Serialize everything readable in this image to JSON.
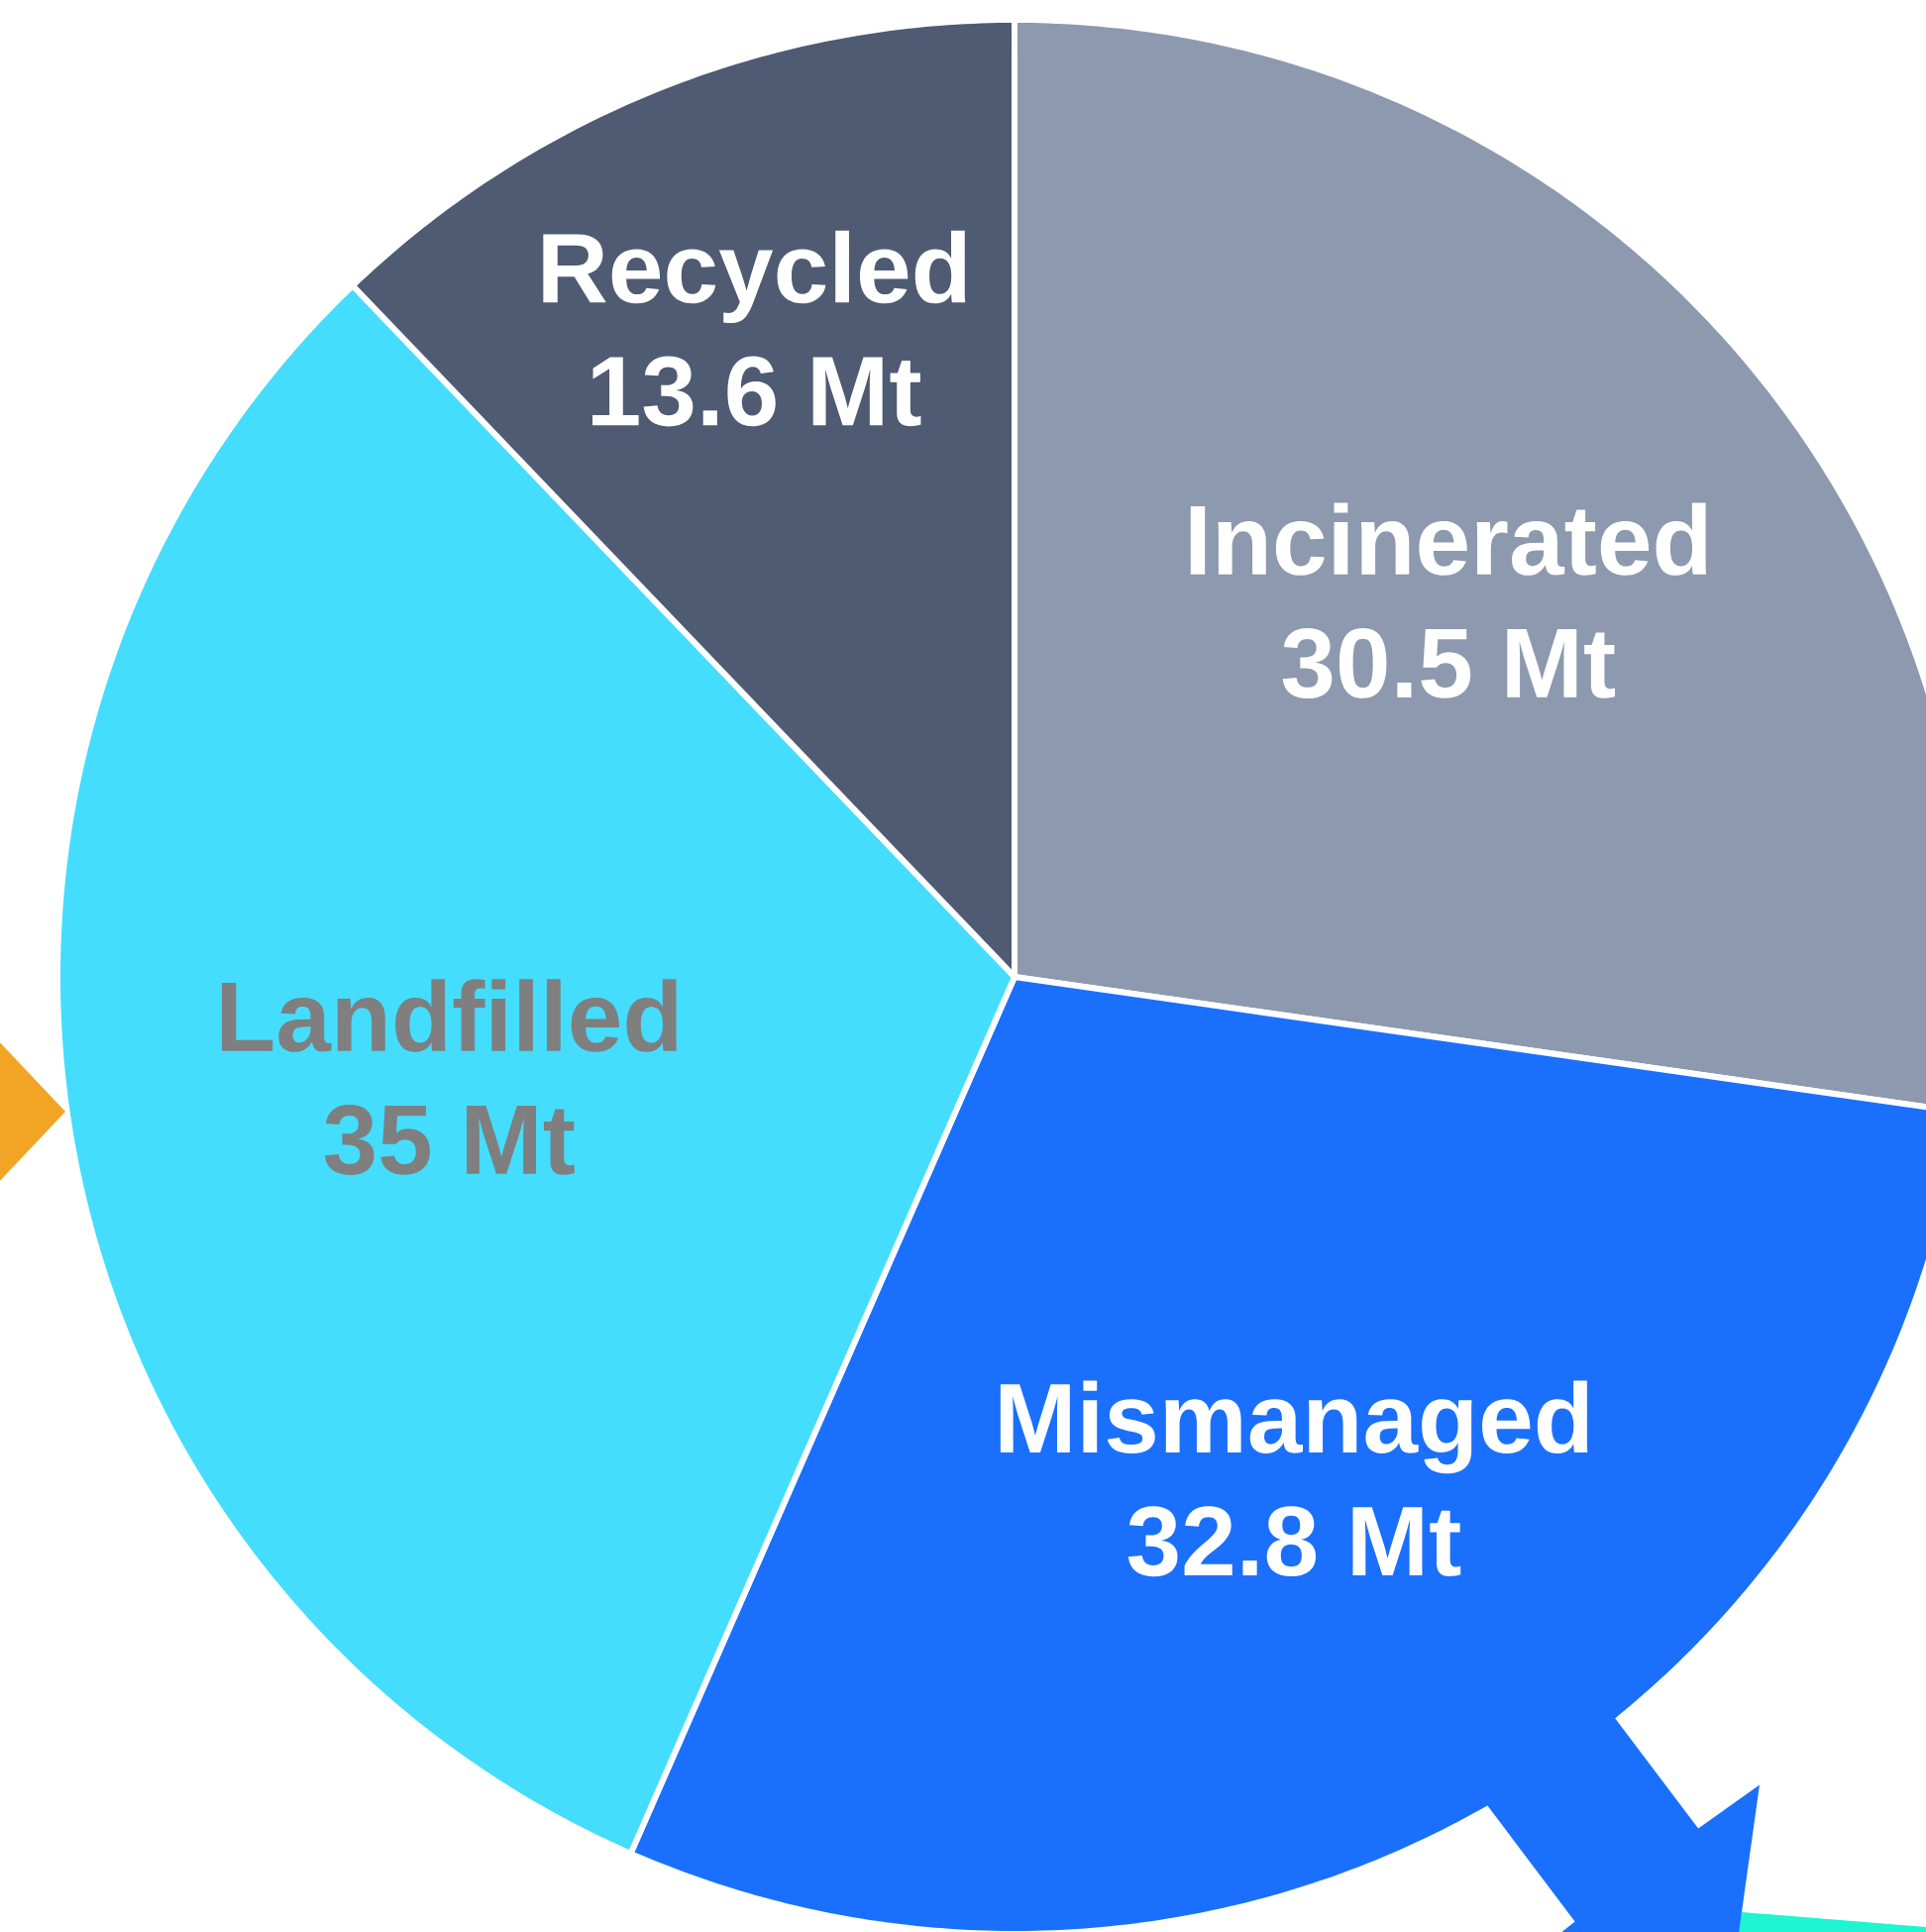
{
  "chart_data": {
    "type": "pie",
    "categories": [
      "Incinerated",
      "Mismanaged",
      "Landfilled",
      "Recycled"
    ],
    "values": [
      30.5,
      32.8,
      35,
      13.6
    ],
    "colors": [
      "#8d99ae",
      "#1a70fd",
      "#44ddfd",
      "#4f5a73"
    ],
    "value_labels": [
      "30.5 Mt",
      "32.8 Mt",
      "35 Mt",
      "13.6 Mt"
    ]
  }
}
